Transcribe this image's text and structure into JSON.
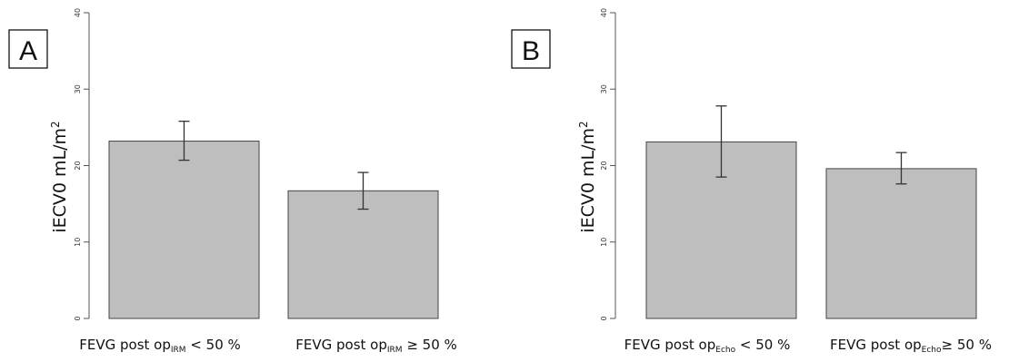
{
  "chart_data": [
    {
      "type": "bar",
      "panel_label": "A",
      "ylabel": {
        "main": "iECV0 mL/m",
        "sup": "2"
      },
      "ylim": [
        0,
        40
      ],
      "yticks": [
        "0",
        "10",
        "20",
        "30",
        "40"
      ],
      "grid": false,
      "categories": [
        {
          "main": "FEVG post op",
          "sub": "IRM",
          "rest": " < 50 %"
        },
        {
          "main": "FEVG post op",
          "sub": "IRM",
          "rest": " ≥ 50 %"
        }
      ],
      "values": [
        23.2,
        16.7
      ],
      "error_low": [
        20.7,
        14.3
      ],
      "error_high": [
        25.8,
        19.1
      ],
      "bar_color": "#bebebe"
    },
    {
      "type": "bar",
      "panel_label": "B",
      "ylabel": {
        "main": "iECV0 mL/m",
        "sup": "2"
      },
      "ylim": [
        0,
        40
      ],
      "yticks": [
        "0",
        "10",
        "20",
        "30",
        "40"
      ],
      "grid": false,
      "categories": [
        {
          "main": "FEVG post op",
          "sub": "Echo",
          "rest": " < 50 %"
        },
        {
          "main": "FEVG post op",
          "sub": "Echo",
          "rest": "≥ 50 %"
        }
      ],
      "values": [
        23.1,
        19.6
      ],
      "error_low": [
        18.5,
        17.6
      ],
      "error_high": [
        27.8,
        21.7
      ],
      "bar_color": "#bebebe"
    }
  ]
}
